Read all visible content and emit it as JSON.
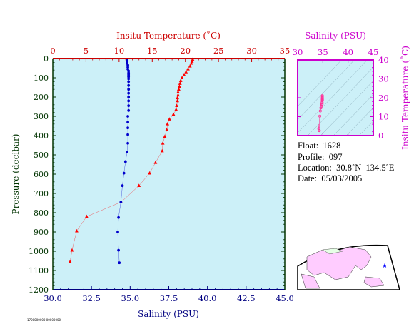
{
  "chart_data": [
    {
      "type": "scatter",
      "panel": "profile",
      "top_axis": {
        "label": "Insitu Temperature (˚C)",
        "range": [
          0,
          35
        ],
        "ticks": [
          "0",
          "5",
          "10",
          "15",
          "20",
          "25",
          "30",
          "35"
        ],
        "color": "#cc0000"
      },
      "bottom_axis": {
        "label": "Salinity (PSU)",
        "range": [
          30,
          45
        ],
        "ticks": [
          "30.0",
          "32.5",
          "35.0",
          "37.5",
          "40.0",
          "42.5",
          "45.0"
        ],
        "color": "#000080"
      },
      "y_axis": {
        "label": "Pressure (decibar)",
        "range": [
          0,
          1200
        ],
        "inverted": true,
        "ticks": [
          "0",
          "100",
          "200",
          "300",
          "400",
          "500",
          "600",
          "700",
          "800",
          "900",
          "1000",
          "1100",
          "1200"
        ],
        "color": "#003300"
      },
      "background": "#ccf0f8",
      "series": [
        {
          "color": "#ff0000",
          "marker": "triangle",
          "axis": "top",
          "points": [
            [
              21.1,
              5
            ],
            [
              21.0,
              15
            ],
            [
              20.9,
              25
            ],
            [
              20.7,
              40
            ],
            [
              20.4,
              55
            ],
            [
              20.1,
              70
            ],
            [
              19.8,
              85
            ],
            [
              19.5,
              100
            ],
            [
              19.3,
              115
            ],
            [
              19.2,
              130
            ],
            [
              19.1,
              145
            ],
            [
              19.0,
              160
            ],
            [
              18.9,
              175
            ],
            [
              18.9,
              190
            ],
            [
              18.8,
              205
            ],
            [
              18.8,
              220
            ],
            [
              18.7,
              245
            ],
            [
              18.6,
              265
            ],
            [
              18.2,
              290
            ],
            [
              17.6,
              315
            ],
            [
              17.3,
              340
            ],
            [
              17.2,
              370
            ],
            [
              16.9,
              405
            ],
            [
              16.6,
              440
            ],
            [
              16.5,
              480
            ],
            [
              15.5,
              540
            ],
            [
              14.6,
              595
            ],
            [
              13.0,
              660
            ],
            [
              10.3,
              745
            ],
            [
              5.1,
              820
            ],
            [
              3.6,
              895
            ],
            [
              2.9,
              995
            ],
            [
              2.6,
              1055
            ]
          ]
        },
        {
          "color": "#0000cc",
          "marker": "circle",
          "axis": "bottom",
          "points": [
            [
              34.8,
              5
            ],
            [
              34.8,
              15
            ],
            [
              34.8,
              25
            ],
            [
              34.85,
              35
            ],
            [
              34.85,
              45
            ],
            [
              34.85,
              55
            ],
            [
              34.9,
              65
            ],
            [
              34.9,
              75
            ],
            [
              34.9,
              85
            ],
            [
              34.9,
              95
            ],
            [
              34.9,
              105
            ],
            [
              34.9,
              120
            ],
            [
              34.9,
              140
            ],
            [
              34.9,
              160
            ],
            [
              34.9,
              180
            ],
            [
              34.9,
              200
            ],
            [
              34.9,
              220
            ],
            [
              34.9,
              245
            ],
            [
              34.9,
              270
            ],
            [
              34.85,
              300
            ],
            [
              34.85,
              330
            ],
            [
              34.85,
              360
            ],
            [
              34.85,
              395
            ],
            [
              34.85,
              440
            ],
            [
              34.8,
              485
            ],
            [
              34.7,
              535
            ],
            [
              34.6,
              595
            ],
            [
              34.5,
              660
            ],
            [
              34.4,
              745
            ],
            [
              34.25,
              825
            ],
            [
              34.2,
              900
            ],
            [
              34.25,
              995
            ],
            [
              34.3,
              1060
            ]
          ]
        }
      ]
    },
    {
      "type": "scatter",
      "panel": "ts-diagram",
      "title": "Salinity (PSU)",
      "x_axis": {
        "range": [
          30,
          45
        ],
        "ticks": [
          "30",
          "35",
          "40",
          "45"
        ],
        "color": "#cc00cc"
      },
      "y_axis": {
        "label": "Insitu Temperature (˚C)",
        "range": [
          0,
          40
        ],
        "ticks": [
          "0",
          "10",
          "20",
          "30",
          "40"
        ],
        "color": "#cc00cc"
      },
      "background": "#ccf0f8",
      "series": [
        {
          "color": "#ff3399",
          "marker": "circle",
          "points": [
            [
              34.9,
              21.1
            ],
            [
              34.9,
              20.7
            ],
            [
              34.9,
              20.1
            ],
            [
              34.9,
              19.5
            ],
            [
              34.9,
              19.2
            ],
            [
              34.9,
              19.0
            ],
            [
              34.9,
              18.8
            ],
            [
              34.9,
              18.6
            ],
            [
              34.85,
              17.6
            ],
            [
              34.85,
              17.2
            ],
            [
              34.85,
              16.6
            ],
            [
              34.8,
              16.5
            ],
            [
              34.7,
              15.5
            ],
            [
              34.6,
              14.6
            ],
            [
              34.5,
              13.0
            ],
            [
              34.4,
              10.3
            ],
            [
              34.25,
              5.1
            ],
            [
              34.2,
              3.6
            ],
            [
              34.25,
              2.9
            ],
            [
              34.3,
              2.6
            ]
          ]
        }
      ]
    }
  ],
  "info": {
    "float": "Float:  1628",
    "profile": "Profile:  097",
    "location": "Location:  30.8˚N  134.5˚E",
    "date": "Date:  05/03/2005"
  },
  "footer": {
    "code": "1700000000 00000000"
  },
  "colors": {
    "map_ocean": "#ffffff",
    "map_land": "#ffccff",
    "map_land_alt": "#e6ffe6",
    "marker": "#0000ff"
  }
}
